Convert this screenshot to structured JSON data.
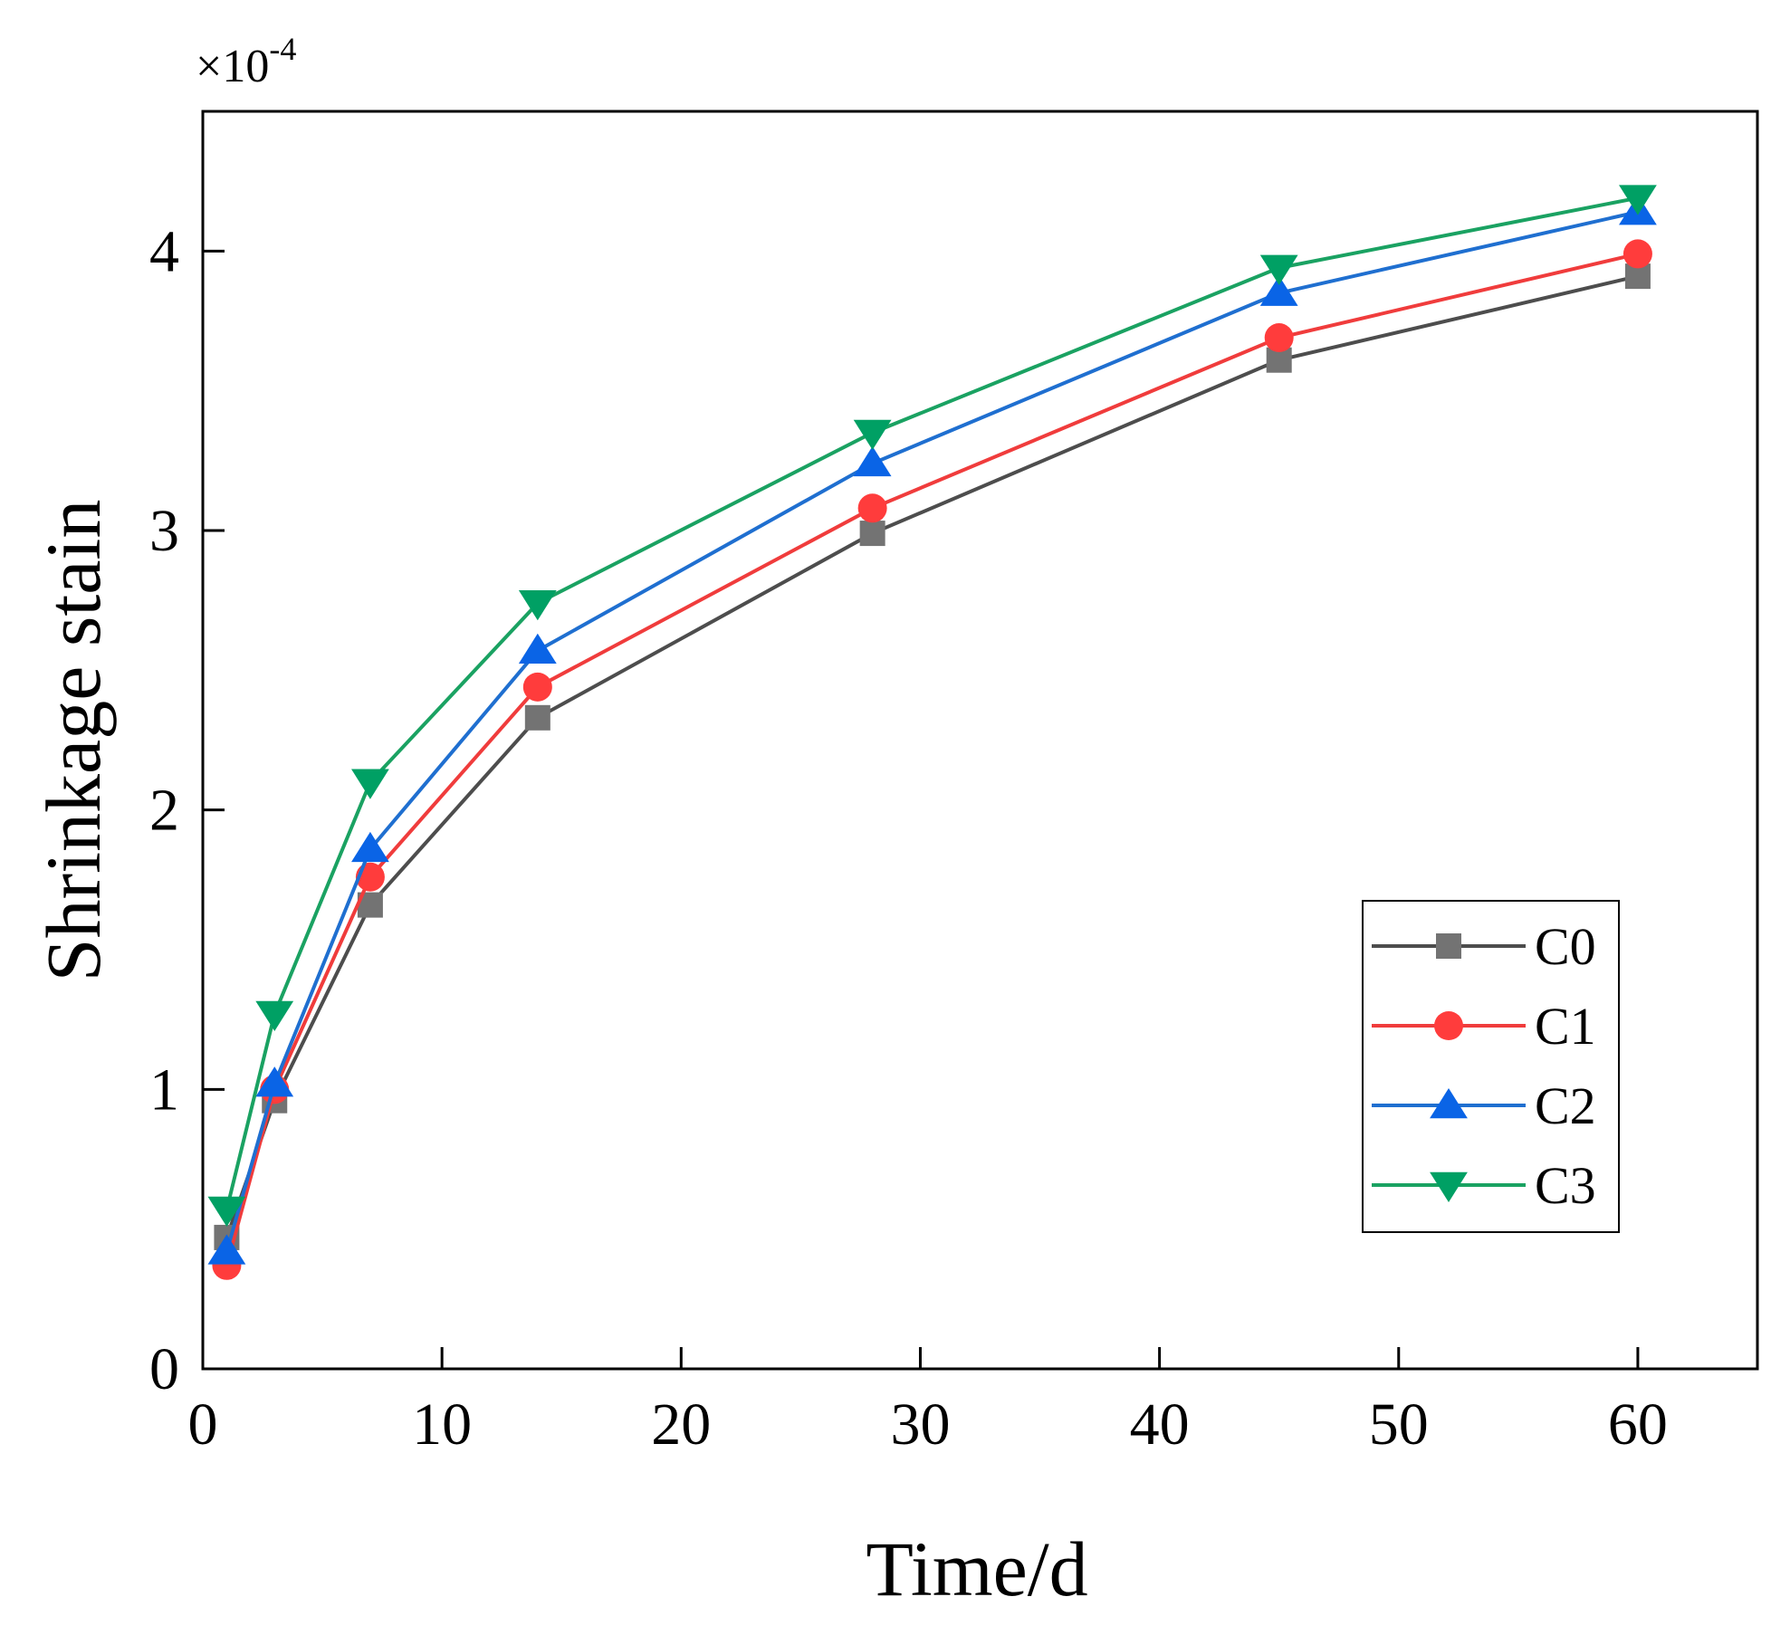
{
  "chart_data": {
    "type": "line",
    "xlabel": "Time/d",
    "ylabel": "Shrinkage stain",
    "y_scale_label": "×10",
    "y_scale_exponent": "-4",
    "xlim": [
      0,
      65
    ],
    "ylim": [
      0,
      4.5
    ],
    "x_ticks": [
      0,
      10,
      20,
      30,
      40,
      50,
      60
    ],
    "y_ticks": [
      0,
      1,
      2,
      3,
      4
    ],
    "grid": false,
    "legend_position": "bottom-right",
    "x": [
      1,
      3,
      7,
      14,
      28,
      45,
      60
    ],
    "series": [
      {
        "name": "C0",
        "marker": "square",
        "color": "#4d4d4d",
        "marker_color": "#737373",
        "values": [
          0.47,
          0.96,
          1.66,
          2.33,
          2.99,
          3.61,
          3.91
        ]
      },
      {
        "name": "C1",
        "marker": "circle",
        "color": "#f03c3c",
        "marker_color": "#ff3c3c",
        "values": [
          0.37,
          1.0,
          1.76,
          2.44,
          3.08,
          3.69,
          3.99
        ]
      },
      {
        "name": "C2",
        "marker": "triangle-up",
        "color": "#1f6fd0",
        "marker_color": "#0a64e6",
        "values": [
          0.42,
          1.02,
          1.86,
          2.57,
          3.24,
          3.85,
          4.14
        ]
      },
      {
        "name": "C3",
        "marker": "triangle-down",
        "color": "#1aa262",
        "marker_color": "#00a064",
        "values": [
          0.57,
          1.27,
          2.1,
          2.74,
          3.35,
          3.94,
          4.19
        ]
      }
    ]
  }
}
